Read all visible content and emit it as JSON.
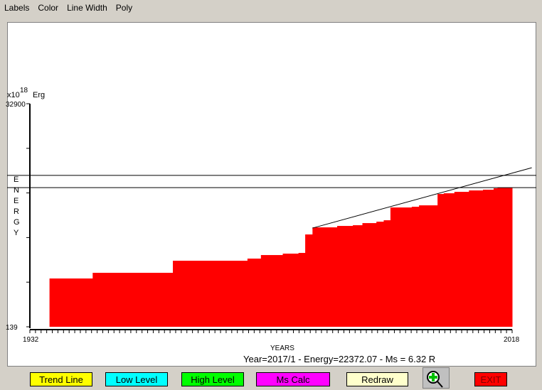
{
  "menu": [
    "Labels",
    "Color",
    "Line Width",
    "Poly"
  ],
  "chart_data": {
    "type": "area",
    "step": true,
    "ylabel": "ENERGY",
    "yunit": "x10",
    "yexp": "18",
    "yunit2": "Erg",
    "xlabel": "YEARS",
    "xlim": [
      1932,
      2018
    ],
    "ylim": [
      139,
      32900
    ],
    "xticklabels": [
      "1932",
      "2018"
    ],
    "yticklabels": [
      "32900",
      "139"
    ],
    "x": [
      1935.5,
      1943.2,
      1957.5,
      1970.8,
      1973.2,
      1977.1,
      1979.9,
      1981.1,
      1982.4,
      1986.8,
      1989.6,
      1991.3,
      1993.8,
      1995.1,
      1996.3,
      2000.1,
      2001.4,
      2004.7,
      2005.8,
      2007.7,
      2010.3,
      2012.8,
      2014.7,
      2015.4
    ],
    "values": [
      7232,
      8066,
      9839,
      10152,
      10673,
      10882,
      10986,
      13698,
      14740,
      14950,
      15055,
      15367,
      15575,
      15784,
      17661,
      17766,
      17974,
      19643,
      19747,
      19956,
      20164,
      20269,
      20477,
      20581
    ],
    "x_end": 2018,
    "trend_line": {
      "x": [
        1982.4,
        2021.5
      ],
      "y": [
        14636,
        23500
      ]
    },
    "levels": [
      22372,
      20581
    ],
    "fill_color": "#ff0000",
    "status": "Year=2017/1 - Energy=22372.07 - Ms = 6.32 R"
  },
  "buttons": [
    {
      "label": "Trend Line",
      "color": "#ffff00"
    },
    {
      "label": "Low Level",
      "color": "#00ffff"
    },
    {
      "label": "High Level",
      "color": "#00ff00"
    },
    {
      "label": "Ms Calc",
      "color": "#ff00ff"
    },
    {
      "label": "Redraw",
      "color": "#ffffcc"
    },
    {
      "label": "EXIT",
      "color": "#ff0000"
    }
  ],
  "zoom_icon": "zoom-in-icon"
}
